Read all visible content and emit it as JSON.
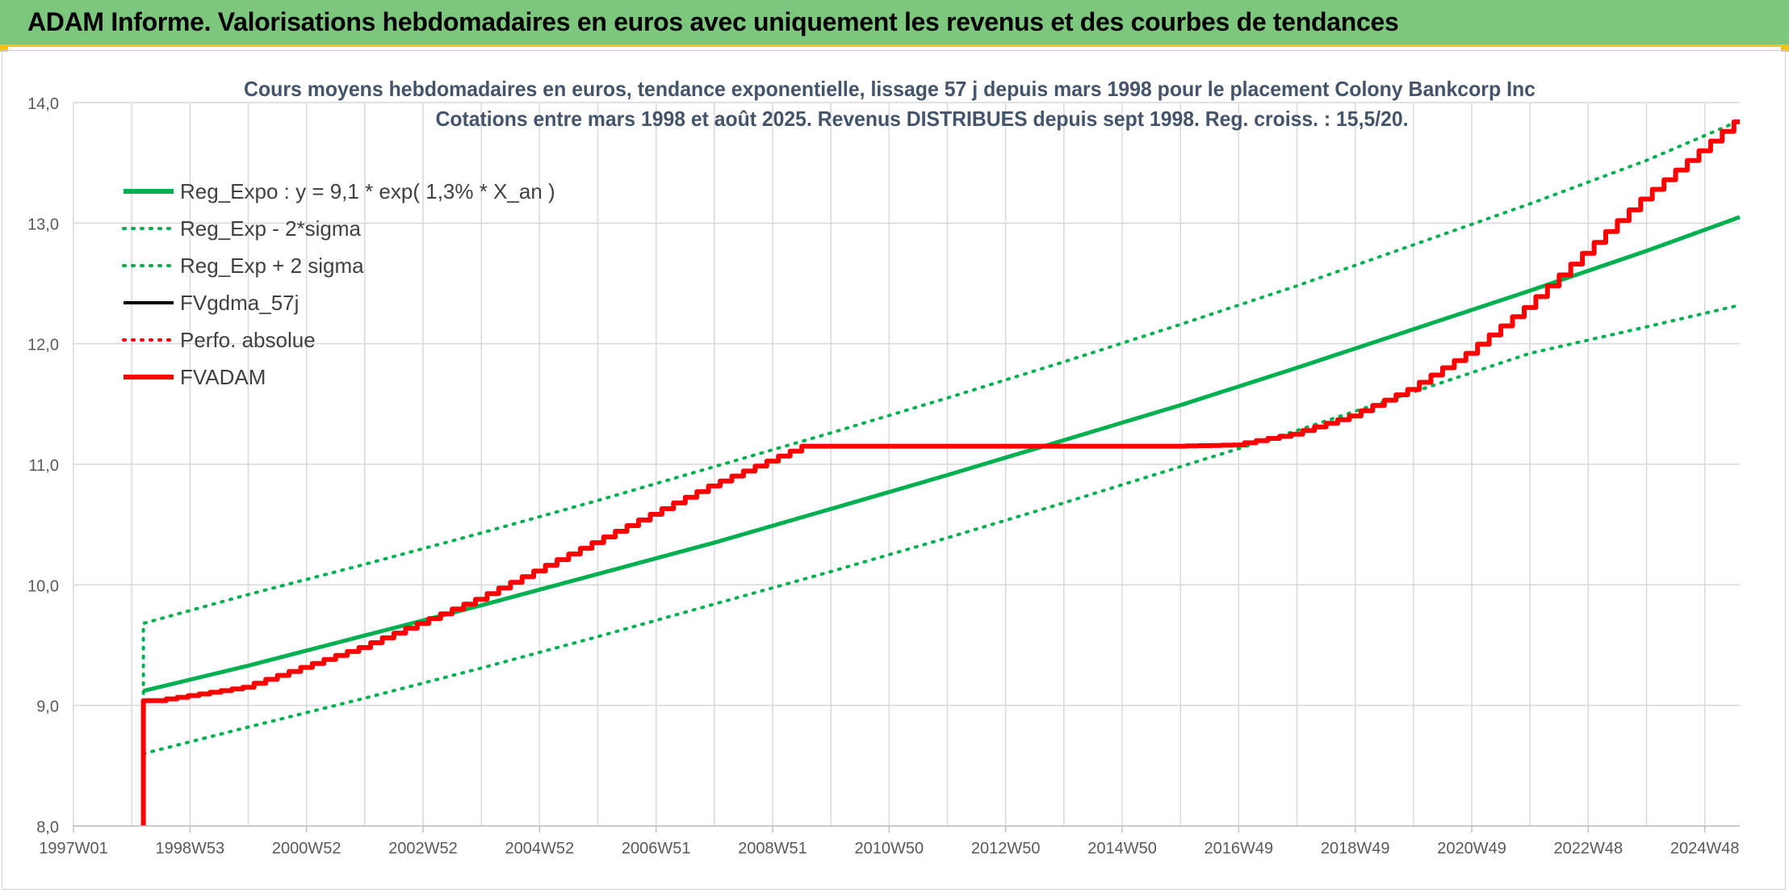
{
  "header": {
    "title": "ADAM Informe. Valorisations hebdomadaires en euros avec uniquement les revenus et des courbes de tendances"
  },
  "chart_data": {
    "type": "line",
    "title": "Cours moyens hebdomadaires en euros, tendance exponentielle, lissage 57 j depuis mars 1998 pour le placement Colony Bankcorp Inc",
    "subtitle": "Cotations entre mars 1998 et août 2025. Revenus DISTRIBUES depuis sept 1998. Reg. croiss. : 15,5/20.",
    "xlabel": "",
    "ylabel": "",
    "x_range": [
      1997.0,
      2025.6
    ],
    "ylim": [
      8.0,
      14.0
    ],
    "y_ticks": [
      "8,0",
      "9,0",
      "10,0",
      "11,0",
      "12,0",
      "13,0",
      "14,0"
    ],
    "x_ticks": [
      {
        "label": "1997W01",
        "x": 1997.0
      },
      {
        "label": "1998W53",
        "x": 1999.0
      },
      {
        "label": "2000W52",
        "x": 2001.0
      },
      {
        "label": "2002W52",
        "x": 2003.0
      },
      {
        "label": "2004W52",
        "x": 2005.0
      },
      {
        "label": "2006W51",
        "x": 2007.0
      },
      {
        "label": "2008W51",
        "x": 2009.0
      },
      {
        "label": "2010W50",
        "x": 2011.0
      },
      {
        "label": "2012W50",
        "x": 2013.0
      },
      {
        "label": "2014W50",
        "x": 2015.0
      },
      {
        "label": "2016W49",
        "x": 2017.0
      },
      {
        "label": "2018W49",
        "x": 2019.0
      },
      {
        "label": "2020W49",
        "x": 2021.0
      },
      {
        "label": "2022W48",
        "x": 2023.0
      },
      {
        "label": "2024W48",
        "x": 2025.0
      }
    ],
    "grid": true,
    "legend_position": "top-left",
    "series": [
      {
        "name": "Reg_Expo : y = 9,1 * exp( 1,3% *  X_an )",
        "color": "#00b050",
        "style": "solid",
        "width": 5,
        "x": [
          1998.2,
          2000.0,
          2002.0,
          2004.0,
          2006.0,
          2008.0,
          2010.0,
          2012.0,
          2014.0,
          2016.0,
          2018.0,
          2020.0,
          2022.0,
          2024.0,
          2025.6
        ],
        "y": [
          9.12,
          9.33,
          9.58,
          9.83,
          10.09,
          10.35,
          10.63,
          10.91,
          11.2,
          11.49,
          11.8,
          12.12,
          12.44,
          12.77,
          13.05
        ]
      },
      {
        "name": "Reg_Exp - 2*sigma",
        "color": "#00b050",
        "style": "dotted",
        "width": 4,
        "x": [
          1998.2,
          2000.0,
          2002.0,
          2004.0,
          2006.0,
          2008.0,
          2010.0,
          2012.0,
          2014.0,
          2016.0,
          2018.0,
          2020.0,
          2022.0,
          2024.0,
          2025.6
        ],
        "y": [
          8.6,
          8.82,
          9.06,
          9.31,
          9.57,
          9.84,
          10.11,
          10.39,
          10.68,
          10.98,
          11.28,
          11.6,
          11.92,
          12.14,
          12.32
        ]
      },
      {
        "name": "Reg_Exp + 2 sigma",
        "color": "#00b050",
        "style": "dotted",
        "width": 4,
        "x": [
          1998.2,
          1998.2,
          2000.0,
          2002.0,
          2004.0,
          2006.0,
          2008.0,
          2010.0,
          2012.0,
          2014.0,
          2016.0,
          2018.0,
          2020.0,
          2022.0,
          2024.0,
          2025.6
        ],
        "y": [
          9.1,
          9.68,
          9.92,
          10.17,
          10.43,
          10.7,
          10.98,
          11.26,
          11.55,
          11.85,
          12.16,
          12.48,
          12.82,
          13.16,
          13.52,
          13.85
        ]
      },
      {
        "name": "FVgdma_57j",
        "color": "#000000",
        "style": "solid",
        "width": 3,
        "x": [
          1998.2,
          1998.5,
          2000.0,
          2002.0,
          2004.0,
          2006.0,
          2008.0,
          2009.6,
          2010.0,
          2012.0,
          2014.0,
          2016.0,
          2017.0,
          2018.0,
          2019.0,
          2020.0,
          2021.0,
          2022.0,
          2023.0,
          2024.0,
          2025.0,
          2025.6
        ],
        "y": [
          9.04,
          9.04,
          9.15,
          9.48,
          9.88,
          10.35,
          10.82,
          11.15,
          11.15,
          11.15,
          11.15,
          11.15,
          11.16,
          11.25,
          11.4,
          11.62,
          11.92,
          12.3,
          12.75,
          13.2,
          13.6,
          13.84
        ]
      },
      {
        "name": "Perfo. absolue",
        "color": "#ff0000",
        "style": "dotted",
        "width": 3,
        "x": [],
        "y": []
      },
      {
        "name": "FVADAM",
        "color": "#ff0000",
        "style": "solid",
        "width": 6,
        "x": [
          1998.2,
          1998.2,
          1998.5,
          2000.0,
          2002.0,
          2004.0,
          2006.0,
          2008.0,
          2009.6,
          2010.0,
          2012.0,
          2014.0,
          2016.0,
          2017.0,
          2018.0,
          2019.0,
          2020.0,
          2021.0,
          2022.0,
          2023.0,
          2024.0,
          2025.0,
          2025.6
        ],
        "y": [
          8.0,
          9.04,
          9.04,
          9.15,
          9.48,
          9.88,
          10.35,
          10.82,
          11.15,
          11.15,
          11.15,
          11.15,
          11.15,
          11.16,
          11.25,
          11.4,
          11.62,
          11.92,
          12.3,
          12.75,
          13.2,
          13.6,
          13.84
        ]
      }
    ]
  }
}
